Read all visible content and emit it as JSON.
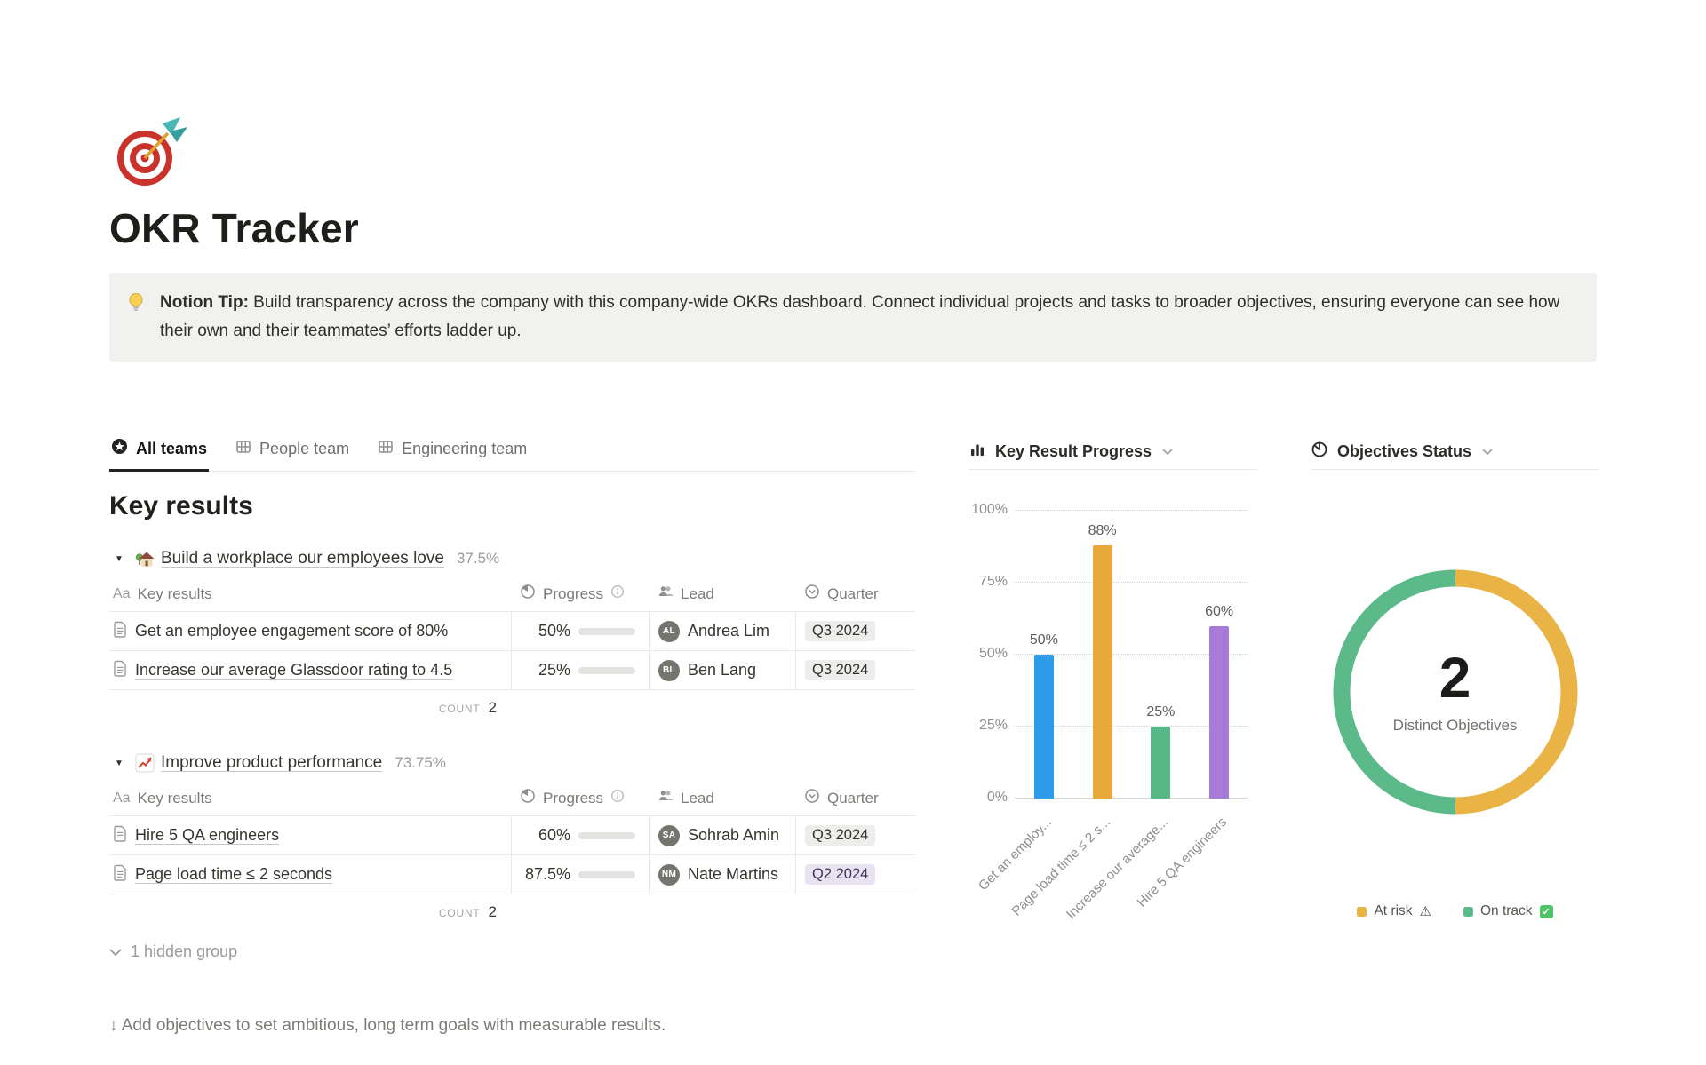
{
  "page": {
    "icon_emoji": "🎯",
    "title": "OKR Tracker"
  },
  "callout": {
    "icon_emoji": "💡",
    "lead": "Notion Tip:",
    "body": " Build transparency across the company with this company-wide OKRs dashboard. Connect individual projects and tasks to broader objectives, ensuring everyone can see how their own and their teammates’ efforts ladder up."
  },
  "tabs": [
    {
      "label": "All teams",
      "active": true
    },
    {
      "label": "People team",
      "active": false
    },
    {
      "label": "Engineering team",
      "active": false
    }
  ],
  "section_title": "Key results",
  "columns": {
    "name_icon": "Aa",
    "name": "Key results",
    "progress": "Progress",
    "lead": "Lead",
    "quarter": "Quarter"
  },
  "groups": [
    {
      "emoji": "🏡",
      "title": "Build a workplace our employees love",
      "percent": "37.5%",
      "rows": [
        {
          "name": "Get an employee engagement score of 80%",
          "percent": "50%",
          "value": 50,
          "lead": "Andrea Lim",
          "initials": "AL",
          "quarter": "Q3 2024",
          "quarter_color": "gray"
        },
        {
          "name": "Increase our average Glassdoor rating to 4.5",
          "percent": "25%",
          "value": 25,
          "lead": "Ben Lang",
          "initials": "BL",
          "quarter": "Q3 2024",
          "quarter_color": "gray"
        }
      ],
      "count_label": "COUNT",
      "count_value": "2"
    },
    {
      "emoji": "📈",
      "title": "Improve product performance",
      "percent": "73.75%",
      "rows": [
        {
          "name": "Hire 5 QA engineers",
          "percent": "60%",
          "value": 60,
          "lead": "Sohrab Amin",
          "initials": "SA",
          "quarter": "Q3 2024",
          "quarter_color": "gray"
        },
        {
          "name": "Page load time ≤ 2 seconds",
          "percent": "87.5%",
          "value": 87.5,
          "lead": "Nate Martins",
          "initials": "NM",
          "quarter": "Q2 2024",
          "quarter_color": "purple"
        }
      ],
      "count_label": "COUNT",
      "count_value": "2"
    }
  ],
  "hidden_group_label": "1 hidden group",
  "footer_hint": "↓ Add objectives to set ambitious, long term goals with measurable results.",
  "chart_data": [
    {
      "type": "bar",
      "title": "Key Result Progress",
      "categories": [
        "Get an employ...",
        "Page load time ≤ 2 s...",
        "Increase our average...",
        "Hire 5 QA engineers"
      ],
      "values": [
        50,
        88,
        25,
        60
      ],
      "value_labels": [
        "50%",
        "88%",
        "25%",
        "60%"
      ],
      "colors": [
        "#2D9CEA",
        "#E8A93B",
        "#58B787",
        "#A87BDB"
      ],
      "xlabel": "",
      "ylabel": "",
      "ylim": [
        0,
        100
      ],
      "yticks": [
        0,
        25,
        50,
        75,
        100
      ],
      "ytick_suffix": "%",
      "grid": "dotted-horizontal",
      "legend_position": "none"
    },
    {
      "type": "donut",
      "title": "Objectives Status",
      "center_value": "2",
      "center_label": "Distinct Objectives",
      "slices": [
        {
          "label": "At risk",
          "value": 1,
          "color": "#E9B345",
          "suffix": "warning"
        },
        {
          "label": "On track",
          "value": 1,
          "color": "#5CB98A",
          "suffix": "check"
        }
      ],
      "legend_position": "bottom"
    }
  ]
}
